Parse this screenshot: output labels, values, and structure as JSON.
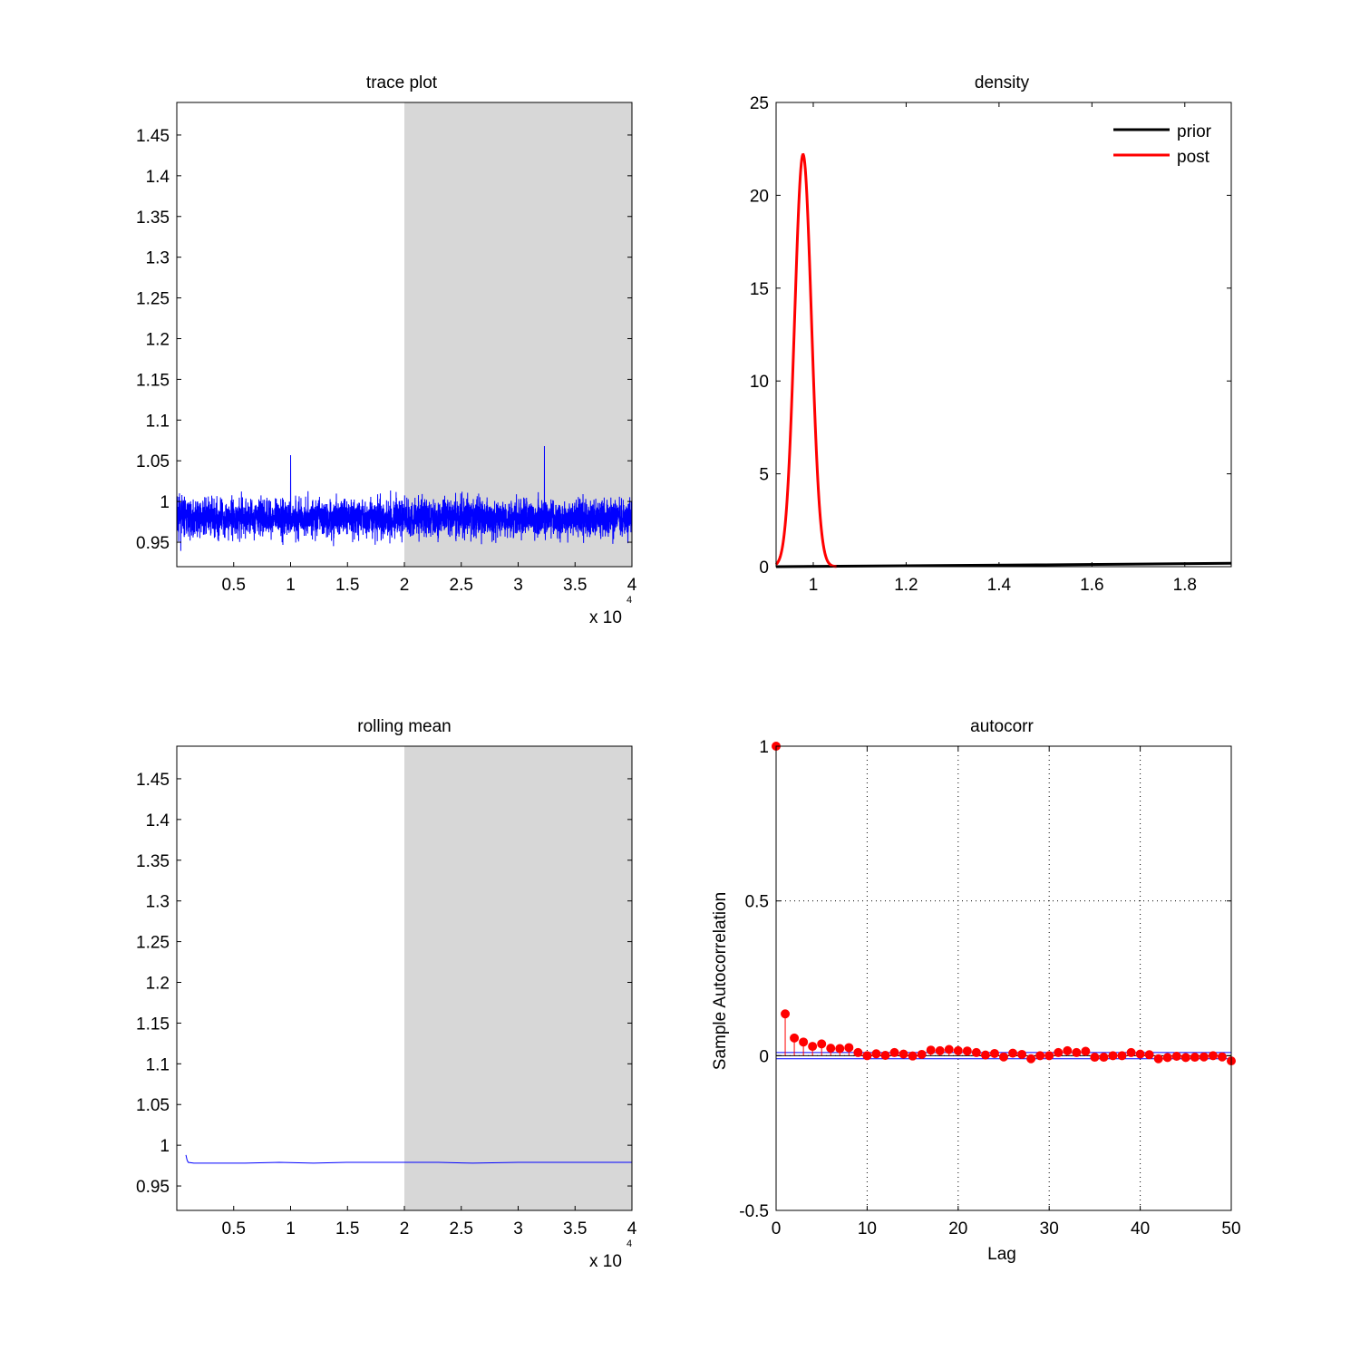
{
  "chart_data": [
    {
      "type": "line",
      "title": "trace plot",
      "x_exponent_label": "x 10",
      "x_exponent_power": "4",
      "xlim": [
        0,
        40000
      ],
      "ylim": [
        0.92,
        1.49
      ],
      "xticks": [
        5000,
        10000,
        15000,
        20000,
        25000,
        30000,
        35000,
        40000
      ],
      "xtick_labels": [
        "0.5",
        "1",
        "1.5",
        "2",
        "2.5",
        "3",
        "3.5",
        "4"
      ],
      "yticks": [
        0.95,
        1,
        1.05,
        1.1,
        1.15,
        1.2,
        1.25,
        1.3,
        1.35,
        1.4,
        1.45
      ],
      "ytick_labels": [
        "0.95",
        "1",
        "1.05",
        "1.1",
        "1.15",
        "1.2",
        "1.25",
        "1.3",
        "1.35",
        "1.4",
        "1.45"
      ],
      "shaded_region": [
        20000,
        40000
      ],
      "series": [
        {
          "color": "#0000ff",
          "n_samples": 40000,
          "center": 0.98,
          "typical_range": [
            0.94,
            1.03
          ],
          "max": 1.068,
          "min": 0.92
        }
      ]
    },
    {
      "type": "line",
      "title": "density",
      "xlim": [
        0.92,
        1.9
      ],
      "ylim": [
        0,
        25
      ],
      "xticks": [
        1,
        1.2,
        1.4,
        1.6,
        1.8
      ],
      "xtick_labels": [
        "1",
        "1.2",
        "1.4",
        "1.6",
        "1.8"
      ],
      "yticks": [
        0,
        5,
        10,
        15,
        20,
        25
      ],
      "ytick_labels": [
        "0",
        "5",
        "10",
        "15",
        "20",
        "25"
      ],
      "legend_position": "top-right",
      "series": [
        {
          "name": "prior",
          "color": "#000000",
          "x": [
            0.92,
            1.2,
            1.5,
            1.9
          ],
          "y": [
            0.0,
            0.05,
            0.1,
            0.18
          ]
        },
        {
          "name": "post",
          "color": "#ff0000",
          "x": [
            0.92,
            0.94,
            0.95,
            0.96,
            0.97,
            0.978,
            0.985,
            0.99,
            1.0,
            1.01,
            1.02,
            1.03,
            1.04,
            1.05
          ],
          "y": [
            0.0,
            1.2,
            4.5,
            11.0,
            18.5,
            22.2,
            21.0,
            17.5,
            9.5,
            3.5,
            1.0,
            0.2,
            0.0,
            0.0
          ]
        }
      ]
    },
    {
      "type": "line",
      "title": "rolling mean",
      "x_exponent_label": "x 10",
      "x_exponent_power": "4",
      "xlim": [
        0,
        40000
      ],
      "ylim": [
        0.92,
        1.49
      ],
      "xticks": [
        5000,
        10000,
        15000,
        20000,
        25000,
        30000,
        35000,
        40000
      ],
      "xtick_labels": [
        "0.5",
        "1",
        "1.5",
        "2",
        "2.5",
        "3",
        "3.5",
        "4"
      ],
      "yticks": [
        0.95,
        1,
        1.05,
        1.1,
        1.15,
        1.2,
        1.25,
        1.3,
        1.35,
        1.4,
        1.45
      ],
      "ytick_labels": [
        "0.95",
        "1",
        "1.05",
        "1.1",
        "1.15",
        "1.2",
        "1.25",
        "1.3",
        "1.35",
        "1.4",
        "1.45"
      ],
      "shaded_region": [
        20000,
        40000
      ],
      "series": [
        {
          "color": "#0000ff",
          "x": [
            800,
            900,
            1000,
            1500,
            3000,
            6000,
            9000,
            12000,
            15000,
            18000,
            20000,
            23000,
            26000,
            30000,
            34000,
            37000,
            40000
          ],
          "y": [
            0.988,
            0.982,
            0.979,
            0.978,
            0.978,
            0.978,
            0.979,
            0.978,
            0.979,
            0.979,
            0.979,
            0.979,
            0.978,
            0.979,
            0.979,
            0.979,
            0.979
          ]
        }
      ]
    },
    {
      "type": "scatter",
      "title": "autocorr",
      "xlabel": "Lag",
      "ylabel": "Sample Autocorrelation",
      "xlim": [
        0,
        50
      ],
      "ylim": [
        -0.5,
        1
      ],
      "xticks": [
        0,
        10,
        20,
        30,
        40,
        50
      ],
      "xtick_labels": [
        "0",
        "10",
        "20",
        "30",
        "40",
        "50"
      ],
      "yticks": [
        -0.5,
        0,
        0.5,
        1
      ],
      "ytick_labels": [
        "-0.5",
        "0",
        "0.5",
        "1"
      ],
      "grid": true,
      "confidence_bounds": [
        -0.01,
        0.01
      ],
      "series": [
        {
          "color": "#ff0000",
          "lags": [
            0,
            1,
            2,
            3,
            4,
            5,
            6,
            7,
            8,
            9,
            10,
            11,
            12,
            13,
            14,
            15,
            16,
            17,
            18,
            19,
            20,
            21,
            22,
            23,
            24,
            25,
            26,
            27,
            28,
            29,
            30,
            31,
            32,
            33,
            34,
            35,
            36,
            37,
            38,
            39,
            40,
            41,
            42,
            43,
            44,
            45,
            46,
            47,
            48,
            49,
            50
          ],
          "values": [
            1.0,
            0.135,
            0.057,
            0.044,
            0.03,
            0.038,
            0.024,
            0.023,
            0.026,
            0.01,
            0.0,
            0.006,
            0.001,
            0.01,
            0.005,
            -0.001,
            0.004,
            0.018,
            0.016,
            0.02,
            0.016,
            0.015,
            0.01,
            0.002,
            0.007,
            -0.004,
            0.008,
            0.004,
            -0.01,
            0.0,
            0.0,
            0.01,
            0.016,
            0.01,
            0.014,
            -0.005,
            -0.005,
            0.0,
            0.0,
            0.01,
            0.005,
            0.003,
            -0.01,
            -0.006,
            -0.002,
            -0.006,
            -0.005,
            -0.004,
            0.0,
            -0.004,
            -0.017
          ]
        }
      ]
    }
  ]
}
